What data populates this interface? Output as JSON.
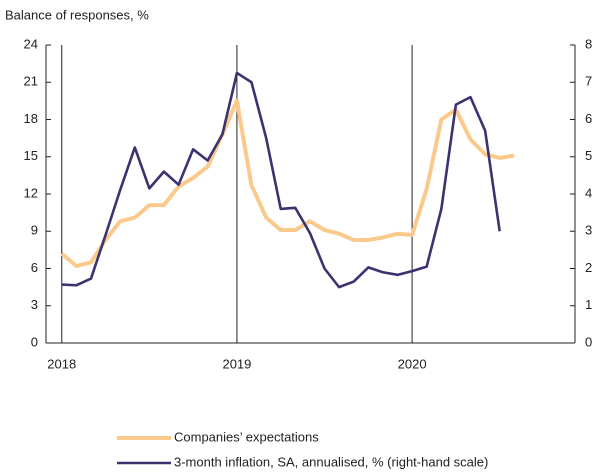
{
  "chart_data": {
    "type": "line",
    "y_axis_label": "Balance of responses, %",
    "x": [
      2018,
      2018.083,
      2018.167,
      2018.25,
      2018.333,
      2018.417,
      2018.5,
      2018.583,
      2018.667,
      2018.75,
      2018.833,
      2018.917,
      2019,
      2019.083,
      2019.167,
      2019.25,
      2019.333,
      2019.417,
      2019.5,
      2019.583,
      2019.667,
      2019.75,
      2019.833,
      2019.917,
      2020,
      2020.083,
      2020.167,
      2020.25,
      2020.333,
      2020.417,
      2020.5,
      2020.583
    ],
    "series": [
      {
        "name": "Companies’ expectations",
        "color": "#fbc98c",
        "axis": "y",
        "values": [
          7.2,
          6.2,
          6.5,
          8.3,
          9.8,
          10.1,
          11.1,
          11.1,
          12.6,
          13.3,
          14.2,
          16.8,
          19.5,
          12.7,
          10.1,
          9.1,
          9.1,
          9.8,
          9.1,
          8.8,
          8.3,
          8.3,
          8.5,
          8.8,
          8.7,
          12.4,
          18.0,
          18.8,
          16.4,
          15.2,
          14.9,
          15.1
        ]
      },
      {
        "name": "3-month inflation, SA, annualised, % (right-hand scale)",
        "color": "#3b3270",
        "axis": "y2",
        "values": [
          1.57,
          1.55,
          1.73,
          2.9,
          4.1,
          5.25,
          4.15,
          4.6,
          4.25,
          5.2,
          4.9,
          5.6,
          7.25,
          7.0,
          5.5,
          3.6,
          3.63,
          2.95,
          2.0,
          1.5,
          1.65,
          2.03,
          1.9,
          1.83,
          1.93,
          2.05,
          3.6,
          6.4,
          6.6,
          5.7,
          3.0,
          null
        ]
      }
    ],
    "xlim": [
      2017.91,
      2020.93
    ],
    "xticks": [
      2018,
      2019,
      2020
    ],
    "ylim": [
      0,
      24
    ],
    "yticks": [
      0,
      3,
      6,
      9,
      12,
      15,
      18,
      21,
      24
    ],
    "y2lim": [
      0,
      8
    ],
    "y2ticks": [
      0,
      1,
      2,
      3,
      4,
      5,
      6,
      7,
      8
    ],
    "grid": true,
    "legend": "bottom"
  }
}
